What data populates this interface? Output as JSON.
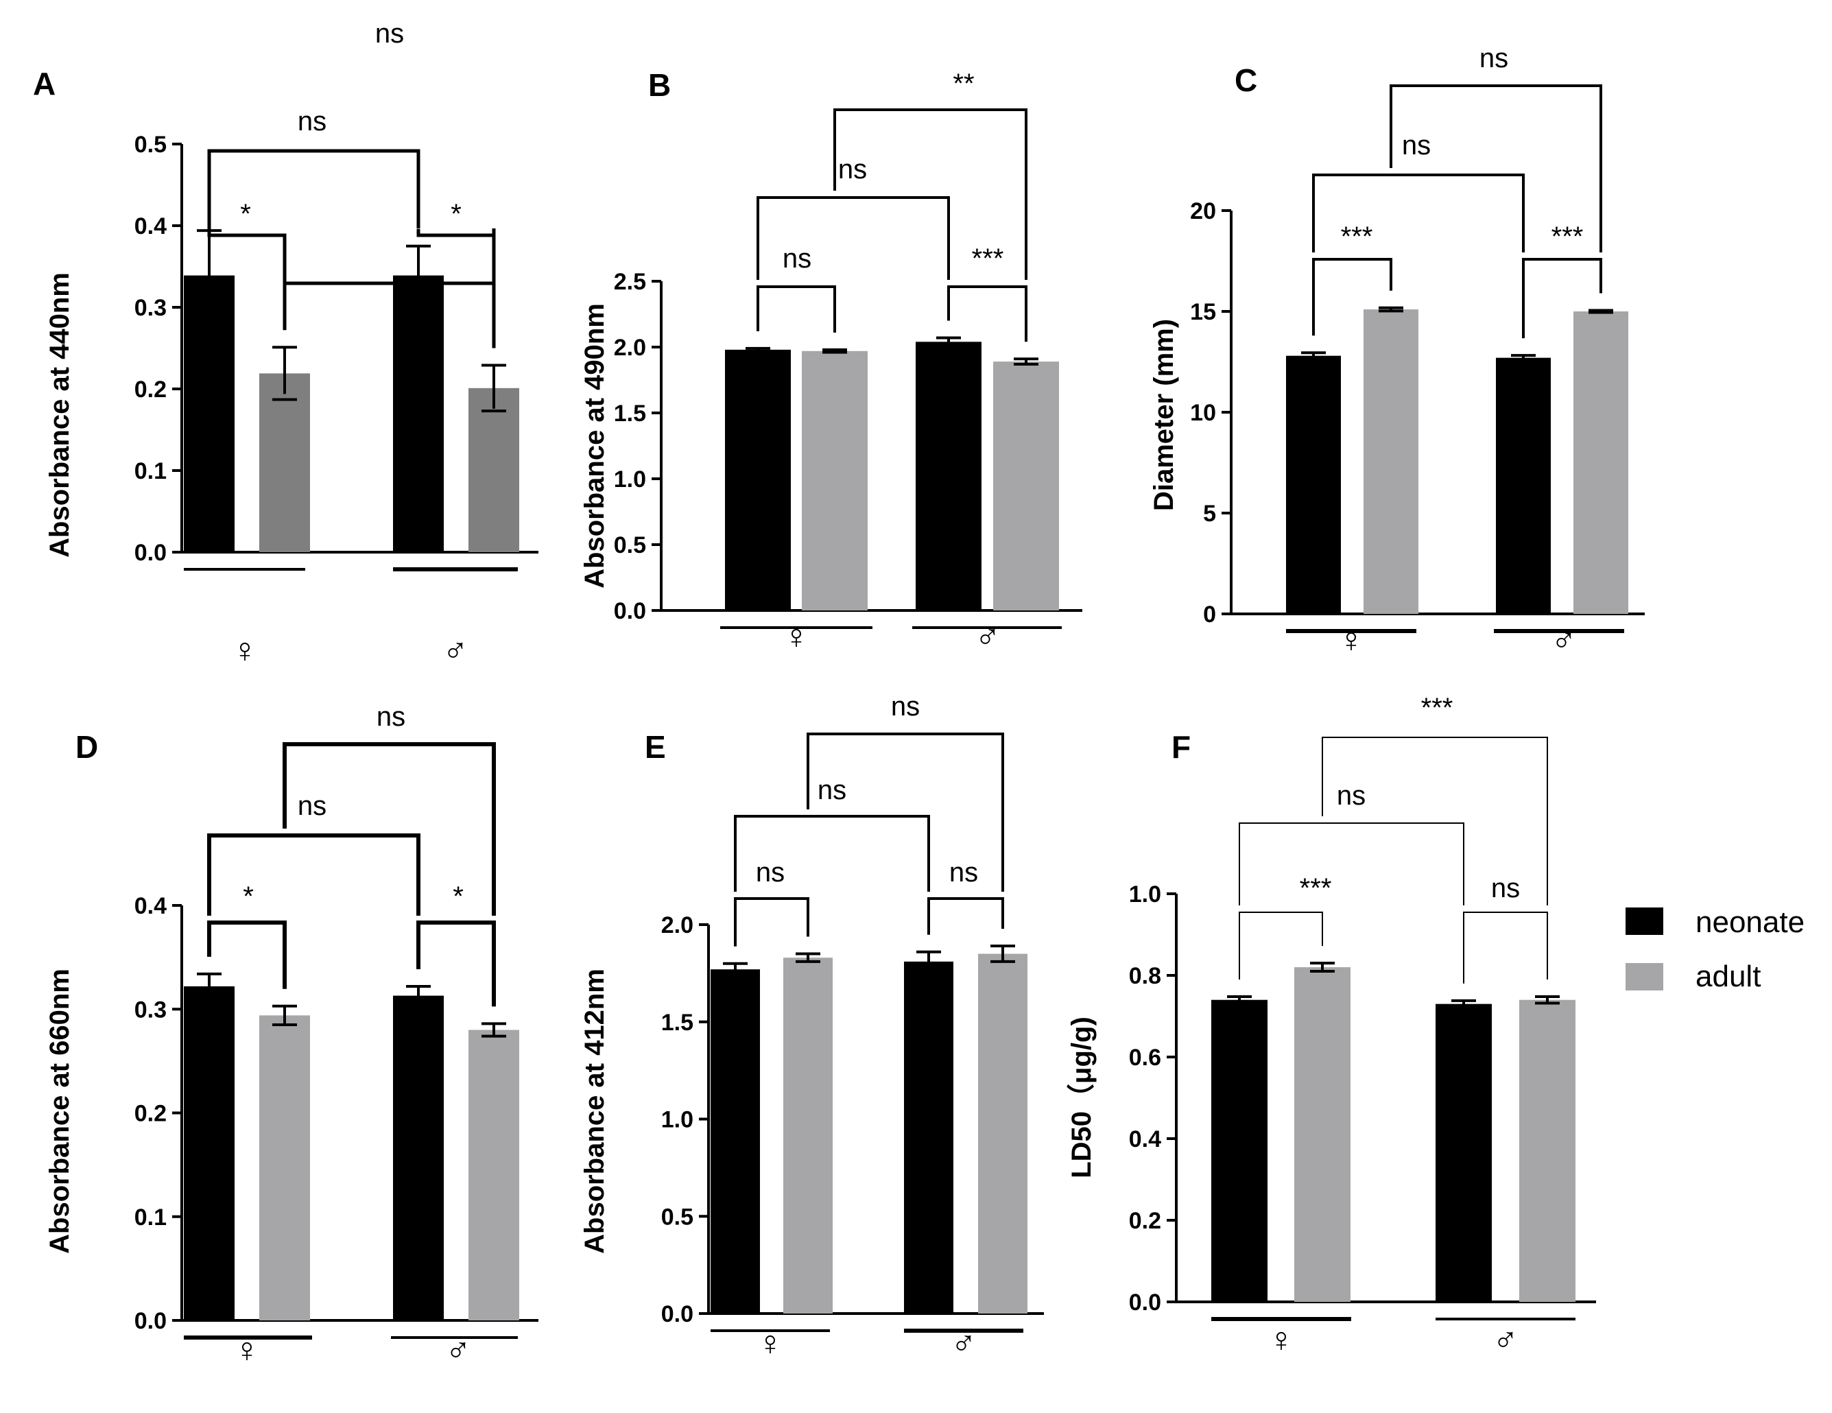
{
  "chart_data": [
    {
      "type": "bar",
      "panel": "A",
      "ylabel": "Absorbance at 440nm",
      "ylim": [
        0,
        0.5
      ],
      "yticks": [
        "0.0",
        "0.1",
        "0.2",
        "0.3",
        "0.4",
        "0.5"
      ],
      "categories": [
        "♀",
        "♂"
      ],
      "series": [
        {
          "name": "neonate",
          "values": [
            0.339,
            0.339
          ],
          "errors": [
            0.055,
            0.036
          ]
        },
        {
          "name": "adult",
          "values": [
            0.219,
            0.201
          ],
          "errors": [
            0.032,
            0.028
          ]
        }
      ],
      "comparisons": [
        {
          "between": "♀ neonate vs ♀ adult",
          "label": "*"
        },
        {
          "between": "♂ neonate vs ♂ adult",
          "label": "*"
        },
        {
          "between": "♀ neonate vs ♂ neonate",
          "label": "ns"
        },
        {
          "between": "♀ adult vs ♂ adult",
          "label": "ns"
        }
      ]
    },
    {
      "type": "bar",
      "panel": "B",
      "ylabel": "Absorbance at 490nm",
      "ylim": [
        0,
        2.5
      ],
      "yticks": [
        "0.0",
        "0.5",
        "1.0",
        "1.5",
        "2.0",
        "2.5"
      ],
      "categories": [
        "♀",
        "♂"
      ],
      "series": [
        {
          "name": "neonate",
          "values": [
            1.98,
            2.04
          ],
          "errors": [
            0.01,
            0.03
          ]
        },
        {
          "name": "adult",
          "values": [
            1.97,
            1.89
          ],
          "errors": [
            0.01,
            0.02
          ]
        }
      ],
      "comparisons": [
        {
          "between": "♀ neonate vs ♀ adult",
          "label": "ns"
        },
        {
          "between": "♂ neonate vs ♂ adult",
          "label": "***"
        },
        {
          "between": "♀ neonate vs ♂ neonate",
          "label": "ns"
        },
        {
          "between": "♀ adult vs ♂ adult",
          "label": "**"
        }
      ]
    },
    {
      "type": "bar",
      "panel": "C",
      "ylabel": "Diameter (mm)",
      "ylim": [
        0,
        20
      ],
      "yticks": [
        "0",
        "5",
        "10",
        "15",
        "20"
      ],
      "categories": [
        "♀",
        "♂"
      ],
      "series": [
        {
          "name": "neonate",
          "values": [
            12.8,
            12.7
          ],
          "errors": [
            0.15,
            0.12
          ]
        },
        {
          "name": "adult",
          "values": [
            15.1,
            15.0
          ],
          "errors": [
            0.08,
            0.05
          ]
        }
      ],
      "comparisons": [
        {
          "between": "♀ neonate vs ♀ adult",
          "label": "***"
        },
        {
          "between": "♂ neonate vs ♂ adult",
          "label": "***"
        },
        {
          "between": "♀ neonate vs ♂ neonate",
          "label": "ns"
        },
        {
          "between": "♀ adult vs ♂ adult",
          "label": "ns"
        }
      ]
    },
    {
      "type": "bar",
      "panel": "D",
      "ylabel": "Absorbance at 660nm",
      "ylim": [
        0,
        0.4
      ],
      "yticks": [
        "0.0",
        "0.1",
        "0.2",
        "0.3",
        "0.4"
      ],
      "categories": [
        "♀",
        "♂"
      ],
      "series": [
        {
          "name": "neonate",
          "values": [
            0.322,
            0.313
          ],
          "errors": [
            0.012,
            0.009
          ]
        },
        {
          "name": "adult",
          "values": [
            0.294,
            0.28
          ],
          "errors": [
            0.009,
            0.006
          ]
        }
      ],
      "comparisons": [
        {
          "between": "♀ neonate vs ♀ adult",
          "label": "*"
        },
        {
          "between": "♂ neonate vs ♂ adult",
          "label": "*"
        },
        {
          "between": "♀ neonate vs ♂ neonate",
          "label": "ns"
        },
        {
          "between": "♀ adult vs ♂ adult",
          "label": "ns"
        }
      ]
    },
    {
      "type": "bar",
      "panel": "E",
      "ylabel": "Absorbance at 412nm",
      "ylim": [
        0,
        2.0
      ],
      "yticks": [
        "0.0",
        "0.5",
        "1.0",
        "1.5",
        "2.0"
      ],
      "categories": [
        "♀",
        "♂"
      ],
      "series": [
        {
          "name": "neonate",
          "values": [
            1.77,
            1.81
          ],
          "errors": [
            0.03,
            0.05
          ]
        },
        {
          "name": "adult",
          "values": [
            1.83,
            1.85
          ],
          "errors": [
            0.02,
            0.04
          ]
        }
      ],
      "comparisons": [
        {
          "between": "♀ neonate vs ♀ adult",
          "label": "ns"
        },
        {
          "between": "♂ neonate vs ♂ adult",
          "label": "ns"
        },
        {
          "between": "♀ neonate vs ♂ neonate",
          "label": "ns"
        },
        {
          "between": "♀ adult vs ♂ adult",
          "label": "ns"
        }
      ]
    },
    {
      "type": "bar",
      "panel": "F",
      "ylabel": "LD50（μg/g)",
      "ylim": [
        0,
        1.0
      ],
      "yticks": [
        "0.0",
        "0.2",
        "0.4",
        "0.6",
        "0.8",
        "1.0"
      ],
      "categories": [
        "♀",
        "♂"
      ],
      "series": [
        {
          "name": "neonate",
          "values": [
            0.74,
            0.73
          ],
          "errors": [
            0.008,
            0.008
          ]
        },
        {
          "name": "adult",
          "values": [
            0.82,
            0.74
          ],
          "errors": [
            0.01,
            0.008
          ]
        }
      ],
      "comparisons": [
        {
          "between": "♀ neonate vs ♀ adult",
          "label": "***"
        },
        {
          "between": "♂ neonate vs ♂ adult",
          "label": "ns"
        },
        {
          "between": "♀ neonate vs ♂ neonate",
          "label": "ns"
        },
        {
          "between": "♀ adult vs ♂ adult",
          "label": "***"
        }
      ]
    }
  ],
  "legend": {
    "items": [
      {
        "label": "neonate",
        "color": "#000000"
      },
      {
        "label": "adult",
        "color": "#a6a6a8"
      }
    ]
  },
  "colors": {
    "neonate": "#000000",
    "adult_light": "#a6a6a8",
    "adult_dark": "#7f7f7f"
  }
}
